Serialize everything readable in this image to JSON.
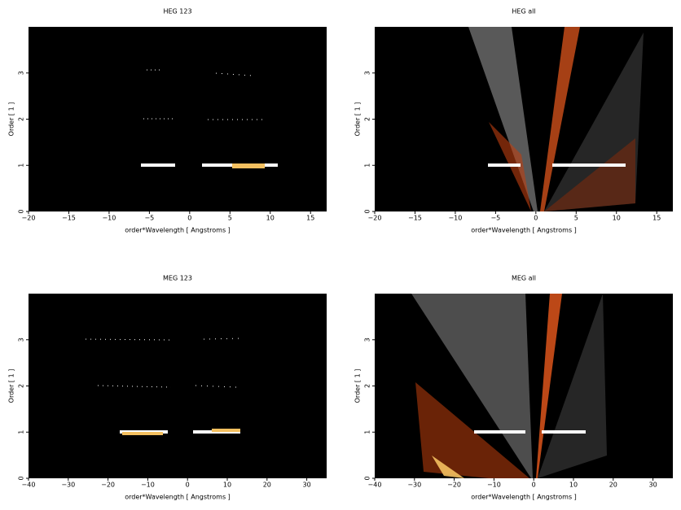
{
  "chart_data": [
    {
      "type": "heatmap",
      "title": "HEG 123",
      "xlabel": "order*Wavelength [ Angstroms ]",
      "ylabel": "Order [ 1 ]",
      "xlim": [
        -20,
        17
      ],
      "ylim": [
        0,
        4
      ],
      "xticks": [
        {
          "value": -20,
          "label": "−20"
        },
        {
          "value": -15,
          "label": "−15"
        },
        {
          "value": -10,
          "label": "−10"
        },
        {
          "value": -5,
          "label": "−5"
        },
        0,
        5,
        10,
        15
      ],
      "yticks": [
        0,
        1,
        2,
        3
      ]
    },
    {
      "type": "heatmap",
      "title": "HEG all",
      "xlabel": "order*Wavelength [ Angstroms ]",
      "ylabel": "Order [ 1 ]",
      "xlim": [
        -20,
        17
      ],
      "ylim": [
        0,
        4
      ],
      "xticks": [
        {
          "value": -20,
          "label": "−20"
        },
        {
          "value": -15,
          "label": "−15"
        },
        {
          "value": -10,
          "label": "−10"
        },
        {
          "value": -5,
          "label": "−5"
        },
        0,
        5,
        10,
        15
      ],
      "yticks": [
        0,
        1,
        2,
        3
      ]
    },
    {
      "type": "heatmap",
      "title": "MEG 123",
      "xlabel": "order*Wavelength [ Angstroms ]",
      "ylabel": "Order [ 1 ]",
      "xlim": [
        -40,
        35
      ],
      "ylim": [
        0,
        4
      ],
      "xticks": [
        {
          "value": -40,
          "label": "−40"
        },
        {
          "value": -30,
          "label": "−30"
        },
        {
          "value": -20,
          "label": "−20"
        },
        {
          "value": -10,
          "label": "−10"
        },
        0,
        10,
        20,
        30
      ],
      "yticks": [
        0,
        1,
        2,
        3
      ]
    },
    {
      "type": "heatmap",
      "title": "MEG all",
      "xlabel": "order*Wavelength [ Angstroms ]",
      "ylabel": "Order [ 1 ]",
      "xlim": [
        -40,
        35
      ],
      "ylim": [
        0,
        4
      ],
      "xticks": [
        {
          "value": -40,
          "label": "−40"
        },
        {
          "value": -30,
          "label": "−30"
        },
        {
          "value": -20,
          "label": "−20"
        },
        {
          "value": -10,
          "label": "−10"
        },
        0,
        10,
        20,
        30
      ],
      "yticks": [
        0,
        1,
        2,
        3
      ]
    }
  ]
}
